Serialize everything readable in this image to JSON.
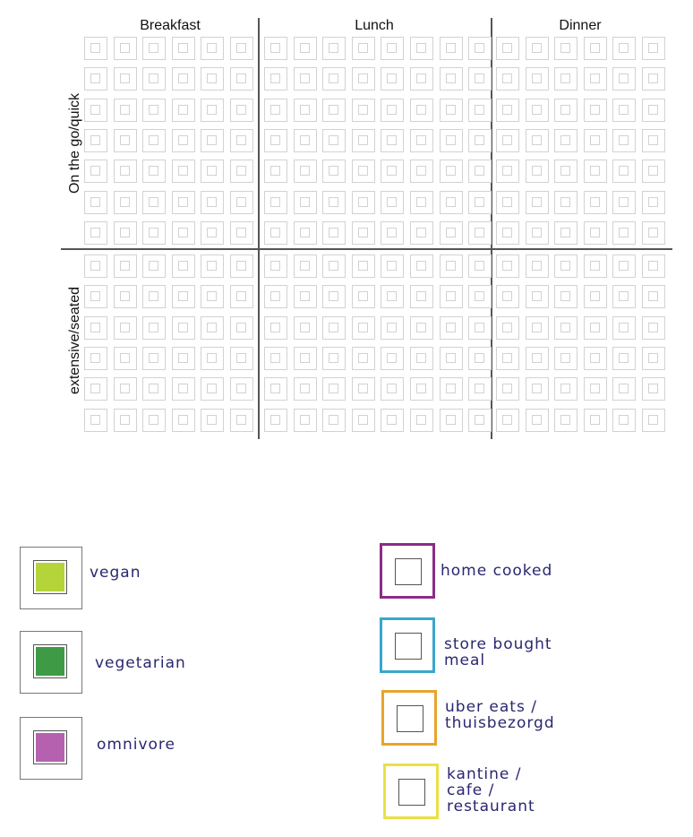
{
  "grid": {
    "columns": [
      "Breakfast",
      "Lunch",
      "Dinner"
    ],
    "rows": [
      "On the go/quick",
      "extensive/seated"
    ],
    "slots_per_column": 6,
    "rows_per_group": [
      7,
      6
    ],
    "cell_color": "#d2d2d2",
    "divider_color": "#555555"
  },
  "legend": {
    "diet": [
      {
        "label": "vegan",
        "color": "#b5d43a"
      },
      {
        "label": "vegetarian",
        "color": "#3f9a45"
      },
      {
        "label": "omnivore",
        "color": "#b561b0"
      }
    ],
    "source": [
      {
        "label": "home cooked",
        "color": "#8c2c86"
      },
      {
        "label": "store bought meal",
        "color": "#3aa6cc"
      },
      {
        "label": "uber eats / thuisbezorgd",
        "color": "#e8a42c"
      },
      {
        "label": "kantine / cafe / restaurant",
        "color": "#ebe045"
      }
    ]
  }
}
